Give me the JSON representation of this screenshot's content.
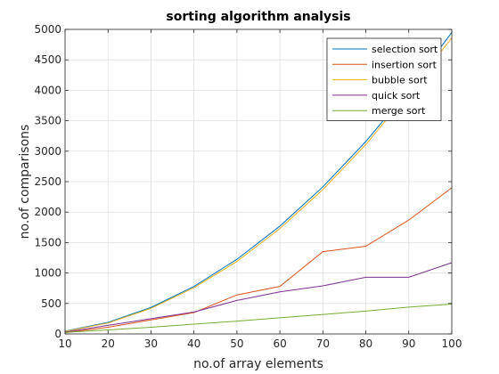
{
  "chart_data": {
    "type": "line",
    "title": "sorting algorithm analysis",
    "xlabel": "no.of array elements",
    "ylabel": "no.of comparisons",
    "xlim": [
      10,
      100
    ],
    "ylim": [
      0,
      5000
    ],
    "xticks": [
      10,
      20,
      30,
      40,
      50,
      60,
      70,
      80,
      90,
      100
    ],
    "yticks": [
      0,
      500,
      1000,
      1500,
      2000,
      2500,
      3000,
      3500,
      4000,
      4500,
      5000
    ],
    "grid": true,
    "legend_position": "top-right",
    "x": [
      10,
      20,
      30,
      40,
      50,
      60,
      70,
      80,
      90,
      100
    ],
    "series": [
      {
        "name": "selection sort",
        "color": "#0072BD",
        "values": [
          45,
          190,
          435,
          780,
          1225,
          1770,
          2415,
          3160,
          4005,
          4950
        ]
      },
      {
        "name": "insertion sort",
        "color": "#D95319",
        "values": [
          20,
          110,
          230,
          350,
          640,
          780,
          1350,
          1440,
          1870,
          2400
        ]
      },
      {
        "name": "bubble sort",
        "color": "#EDB120",
        "values": [
          40,
          180,
          420,
          760,
          1190,
          1730,
          2370,
          3110,
          3960,
          4860
        ]
      },
      {
        "name": "quick sort",
        "color": "#7E2F8E",
        "values": [
          30,
          140,
          250,
          360,
          550,
          690,
          790,
          930,
          930,
          1170
        ]
      },
      {
        "name": "merge sort",
        "color": "#77AC30",
        "values": [
          25,
          65,
          110,
          160,
          210,
          265,
          320,
          375,
          440,
          490
        ]
      }
    ]
  }
}
